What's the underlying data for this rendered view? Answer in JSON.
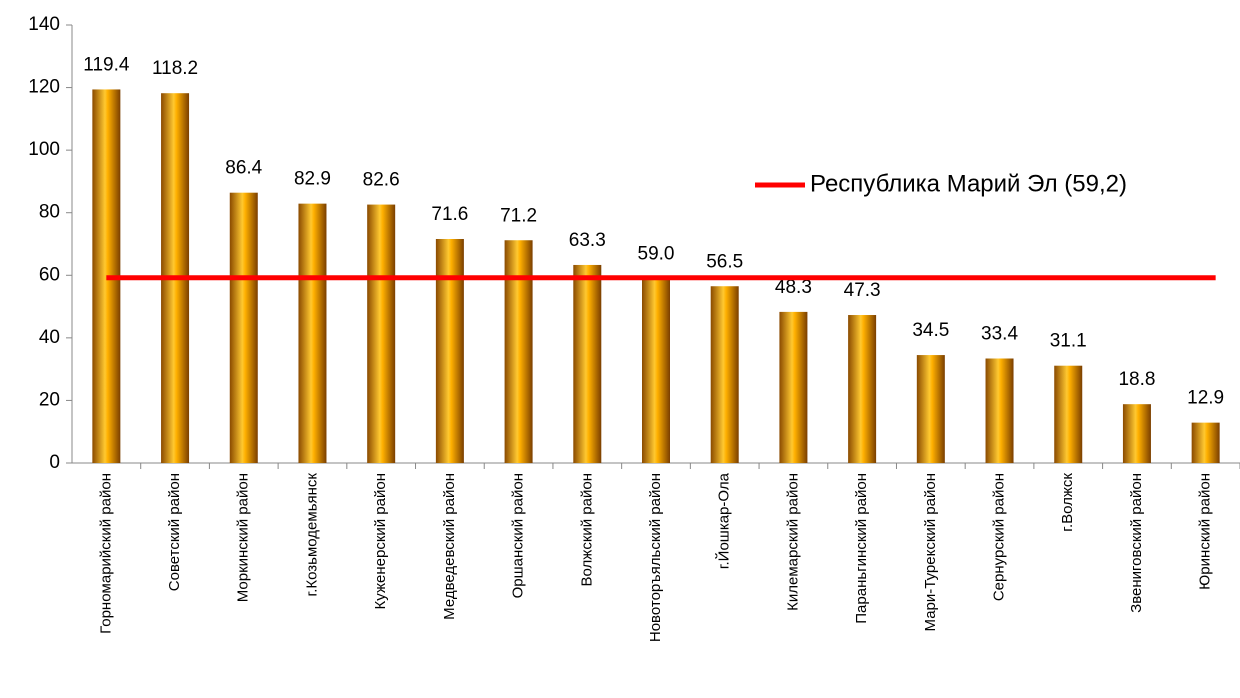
{
  "chart_data": {
    "type": "bar",
    "categories": [
      "Горномарийский район",
      "Советский район",
      "Моркинский район",
      "г.Козьмодемьянск",
      "Куженерский район",
      "Медведевский район",
      "Оршанский район",
      "Волжский район",
      "Новоторъяльский район",
      "г.Йошкар-Ола",
      "Килемарский район",
      "Параньгинский район",
      "Мари-Турекский район",
      "Сернурский район",
      "г.Волжск",
      "Звениговский район",
      "Юринский район"
    ],
    "values": [
      119.4,
      118.2,
      86.4,
      82.9,
      82.6,
      71.6,
      71.2,
      63.3,
      59.0,
      56.5,
      48.3,
      47.3,
      34.5,
      33.4,
      31.1,
      18.8,
      12.9
    ],
    "value_labels": [
      "119.4",
      "118.2",
      "86.4",
      "82.9",
      "82.6",
      "71.6",
      "71.2",
      "63.3",
      "59.0",
      "56.5",
      "48.3",
      "47.3",
      "34.5",
      "33.4",
      "31.1",
      "18.8",
      "12.9"
    ],
    "color": "#f0a000",
    "ylim": [
      0,
      140
    ],
    "yticks": [
      0,
      20,
      40,
      60,
      80,
      100,
      120,
      140
    ],
    "reference_line": {
      "name": "Республика Марий Эл (59,2)",
      "value": 59.2,
      "color": "#ff0000"
    }
  }
}
